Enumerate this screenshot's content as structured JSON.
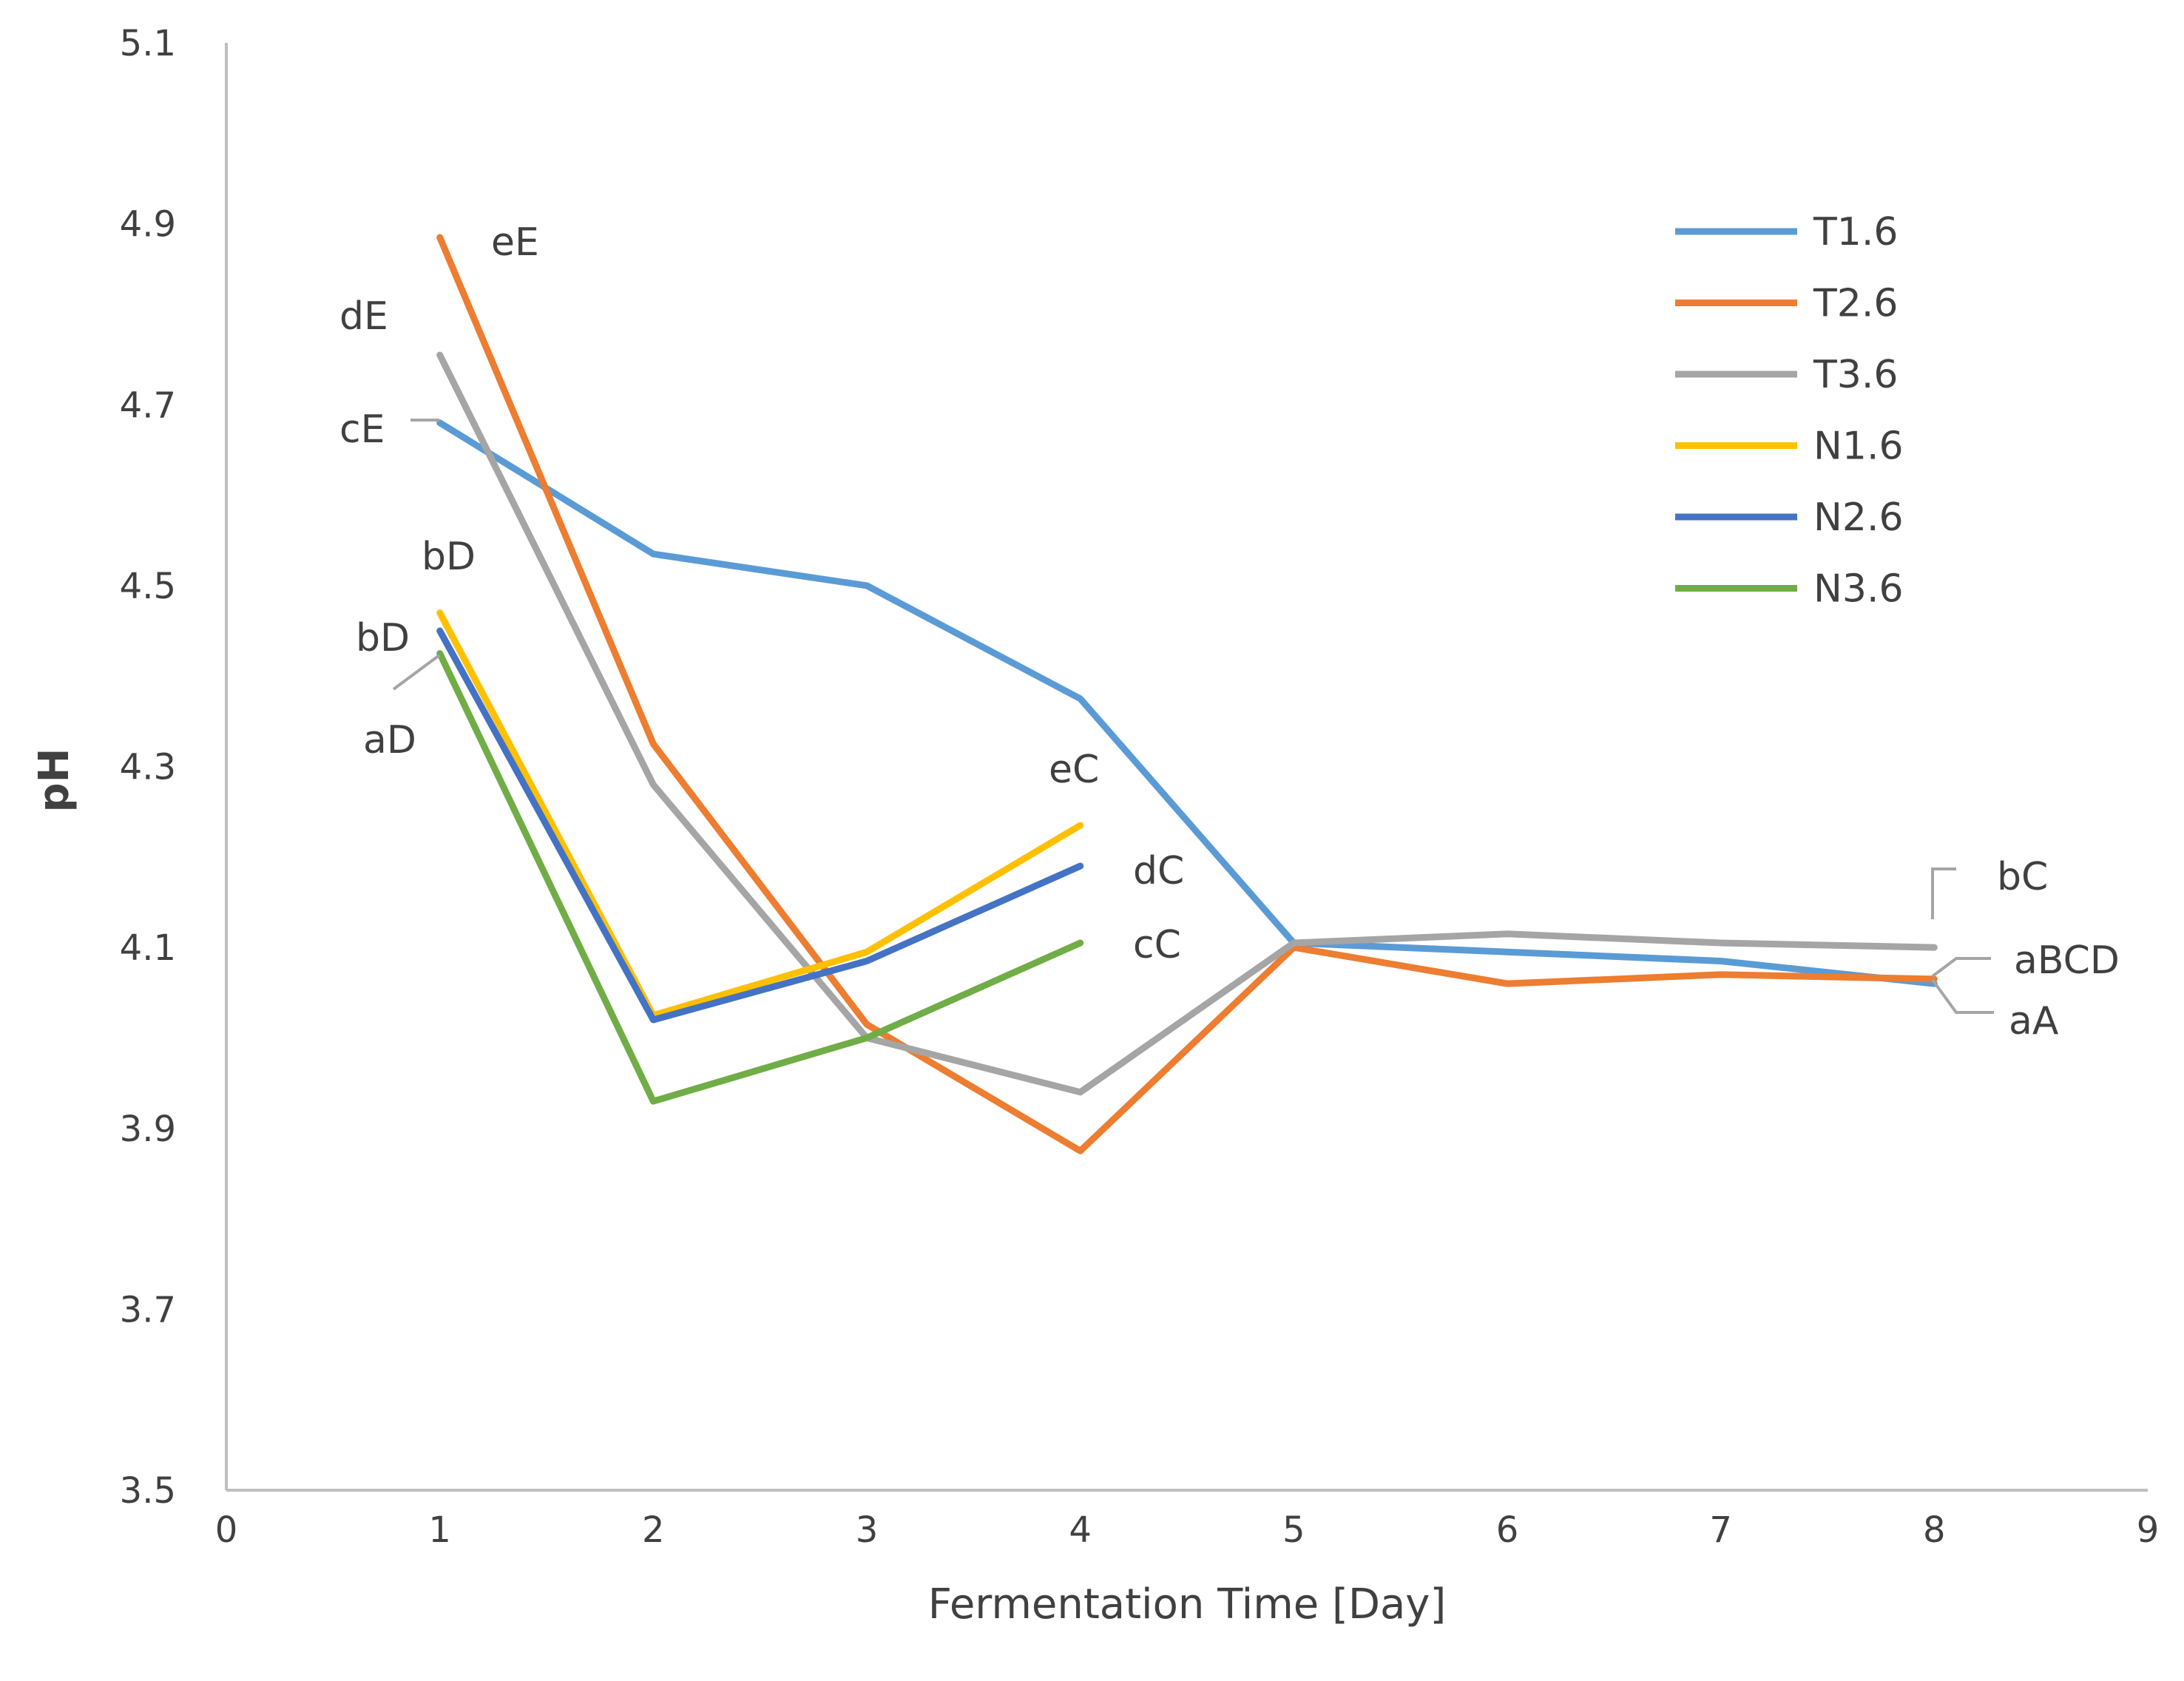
{
  "chart_data": {
    "type": "line",
    "title": "",
    "xlabel": "Fermentation Time [Day]",
    "ylabel": "pH",
    "xlim": [
      0,
      9
    ],
    "ylim": [
      3.5,
      5.1
    ],
    "x_ticks": [
      "0",
      "1",
      "2",
      "3",
      "4",
      "5",
      "6",
      "7",
      "8",
      "9"
    ],
    "y_ticks": [
      "3.5",
      "3.7",
      "3.9",
      "4.1",
      "4.3",
      "4.5",
      "4.7",
      "4.9",
      "5.1"
    ],
    "legend_position": "top-right",
    "series": [
      {
        "name": "T1.6",
        "color": "#5B9BD5",
        "x": [
          1,
          2,
          3,
          4,
          5,
          6,
          7,
          8
        ],
        "values": [
          4.68,
          4.535,
          4.5,
          4.375,
          4.105,
          4.095,
          4.085,
          4.06
        ]
      },
      {
        "name": "T2.6",
        "color": "#ED7D31",
        "x": [
          1,
          2,
          3,
          4,
          5,
          6,
          7,
          8
        ],
        "values": [
          4.885,
          4.325,
          4.015,
          3.875,
          4.1,
          4.06,
          4.07,
          4.065
        ]
      },
      {
        "name": "T3.6",
        "color": "#A5A5A5",
        "x": [
          1,
          2,
          3,
          4,
          5,
          6,
          7,
          8
        ],
        "values": [
          4.755,
          4.28,
          4.0,
          3.94,
          4.105,
          4.115,
          4.105,
          4.1
        ]
      },
      {
        "name": "N1.6",
        "color": "#FFC000",
        "x": [
          1,
          2,
          3,
          4
        ],
        "values": [
          4.47,
          4.025,
          4.095,
          4.235
        ]
      },
      {
        "name": "N2.6",
        "color": "#4472C4",
        "x": [
          1,
          2,
          3,
          4
        ],
        "values": [
          4.45,
          4.02,
          4.085,
          4.19
        ]
      },
      {
        "name": "N3.6",
        "color": "#70AD47",
        "x": [
          1,
          2,
          3,
          4
        ],
        "values": [
          4.425,
          3.93,
          4.0,
          4.105
        ]
      }
    ],
    "annotations": [
      "eE",
      "dE",
      "cE",
      "bD",
      "bD",
      "aD",
      "eC",
      "dC",
      "cC",
      "bC",
      "aBCD",
      "aA"
    ]
  }
}
